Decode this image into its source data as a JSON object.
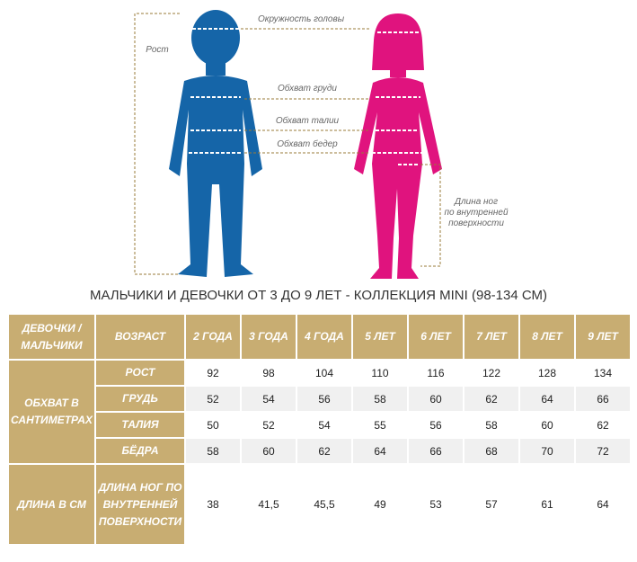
{
  "diagram": {
    "height_label": "Рост",
    "head_label": "Окружность головы",
    "chest_label": "Обхват груди",
    "waist_label": "Обхват талии",
    "hips_label": "Обхват бедер",
    "leg_label": [
      "Длина ног",
      "по внутренней",
      "поверхности"
    ]
  },
  "title": "МАЛЬЧИКИ И ДЕВОЧКИ ОТ 3 ДО 9 ЛЕТ - КОЛЛЕКЦИЯ MINI (98-134 СМ)",
  "table": {
    "header": [
      "ДЕВОЧКИ / МАЛЬЧИКИ",
      "ВОЗРАСТ",
      "2 ГОДА",
      "3 ГОДА",
      "4 ГОДА",
      "5 ЛЕТ",
      "6 ЛЕТ",
      "7 ЛЕТ",
      "8 ЛЕТ",
      "9 ЛЕТ"
    ],
    "groups": [
      {
        "label": "ОБХВАТ В САНТИМЕТРАХ",
        "rows": [
          {
            "label": "РОСТ",
            "values": [
              92,
              98,
              104,
              110,
              116,
              122,
              128,
              134
            ]
          },
          {
            "label": "ГРУДЬ",
            "values": [
              52,
              54,
              56,
              58,
              60,
              62,
              64,
              66
            ]
          },
          {
            "label": "ТАЛИЯ",
            "values": [
              50,
              52,
              54,
              55,
              56,
              58,
              60,
              62
            ]
          },
          {
            "label": "БЁДРА",
            "values": [
              58,
              60,
              62,
              64,
              66,
              68,
              70,
              72
            ]
          }
        ]
      },
      {
        "label": "ДЛИНА В СМ",
        "rows": [
          {
            "label": "ДЛИНА НОГ ПО ВНУТРЕННЕЙ ПОВЕРХНОСТИ",
            "values": [
              38,
              "41,5",
              "45,5",
              49,
              53,
              57,
              61,
              64
            ]
          }
        ]
      }
    ]
  }
}
